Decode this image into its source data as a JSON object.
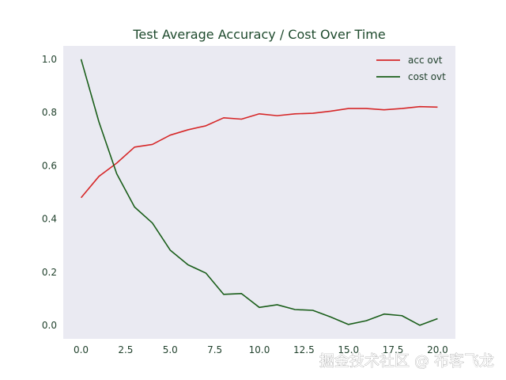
{
  "chart_data": {
    "type": "line",
    "title": "Test Average Accuracy / Cost Over Time",
    "xlabel": "",
    "ylabel": "",
    "xlim": [
      -1,
      21
    ],
    "ylim": [
      -0.05,
      1.05
    ],
    "xticks": [
      "0.0",
      "2.5",
      "5.0",
      "7.5",
      "10.0",
      "12.5",
      "15.0",
      "17.5",
      "20.0"
    ],
    "yticks": [
      "0.0",
      "0.2",
      "0.4",
      "0.6",
      "0.8",
      "1.0"
    ],
    "grid": false,
    "legend_position": "top-right",
    "x": [
      0,
      1,
      2,
      3,
      4,
      5,
      6,
      7,
      8,
      9,
      10,
      11,
      12,
      13,
      14,
      15,
      16,
      17,
      18,
      19,
      20
    ],
    "series": [
      {
        "name": "acc ovt",
        "color": "#d62728",
        "values": [
          0.48,
          0.56,
          0.61,
          0.67,
          0.68,
          0.715,
          0.735,
          0.75,
          0.78,
          0.775,
          0.795,
          0.788,
          0.795,
          0.797,
          0.805,
          0.815,
          0.815,
          0.81,
          0.815,
          0.822,
          0.82
        ]
      },
      {
        "name": "cost ovt",
        "color": "#1a5e1a",
        "values": [
          1.0,
          0.765,
          0.57,
          0.445,
          0.385,
          0.283,
          0.228,
          0.197,
          0.117,
          0.12,
          0.068,
          0.078,
          0.06,
          0.057,
          0.032,
          0.004,
          0.018,
          0.043,
          0.037,
          0.001,
          0.026
        ]
      }
    ]
  },
  "watermark": {
    "text": "掘金技术社区 @ 布客飞龙"
  },
  "colors": {
    "plot_background": "#eaeaf2"
  }
}
